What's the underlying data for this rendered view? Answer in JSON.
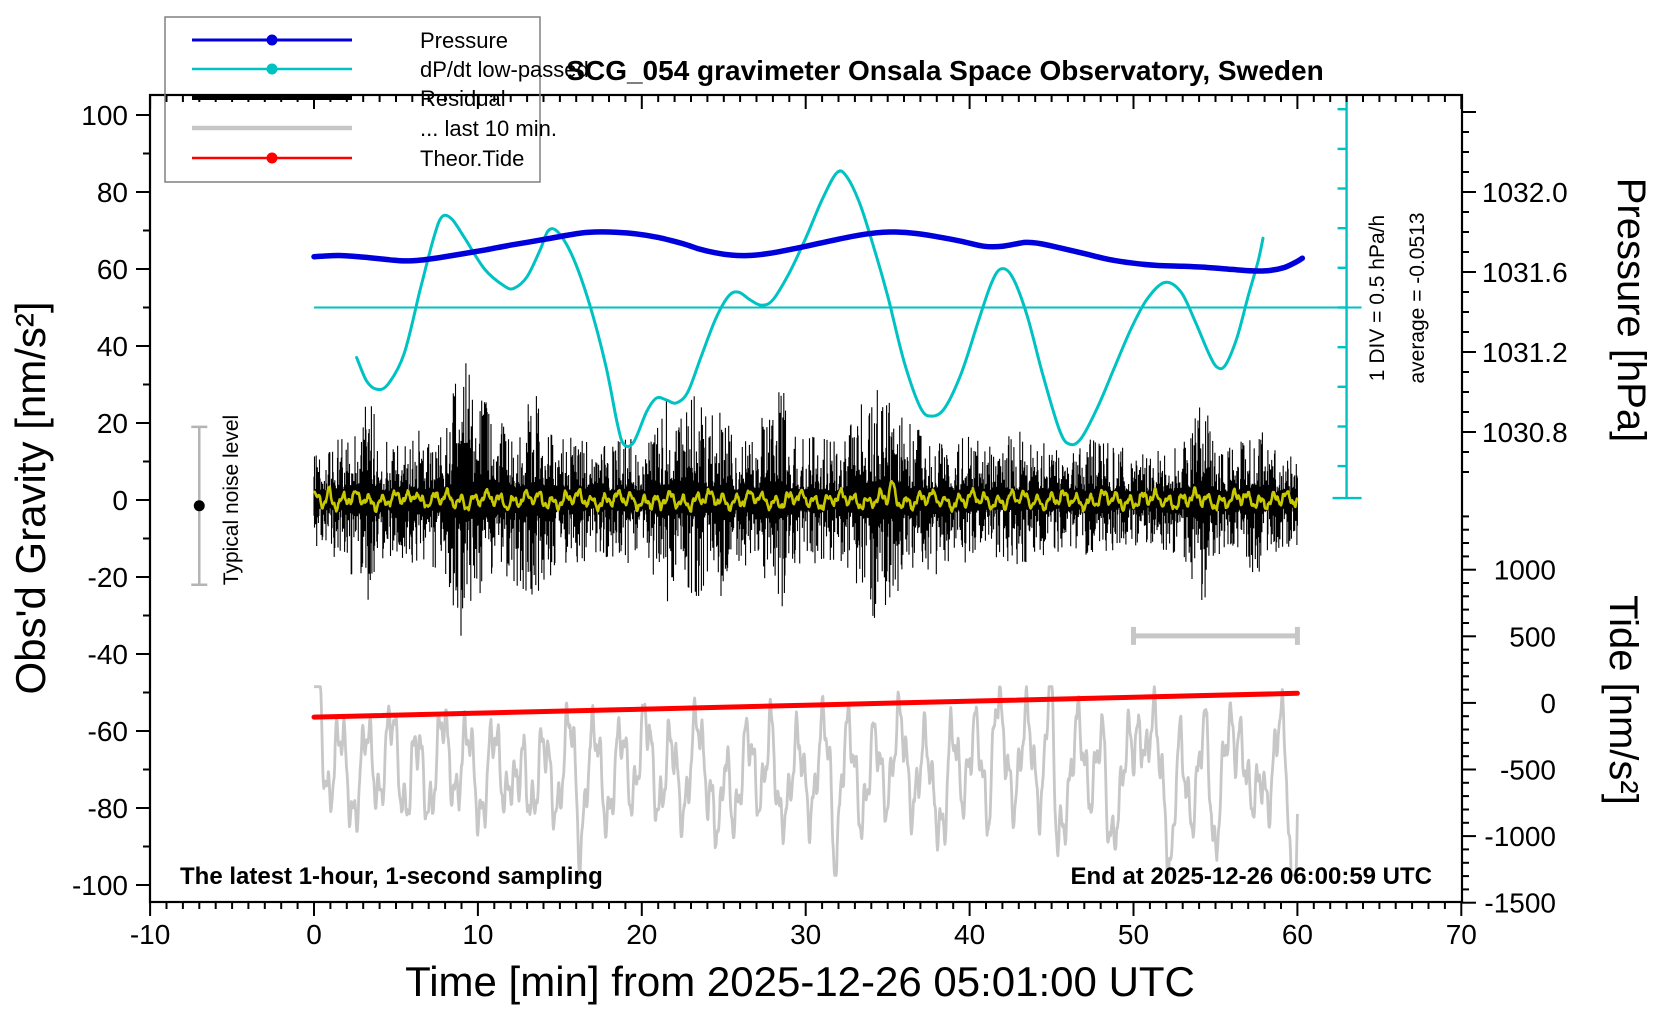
{
  "title": "SCG_054 gravimeter Onsala Space Observatory, Sweden",
  "xlabel": "Time [min] from 2025-12-26 05:01:00 UTC",
  "ylabel_left": "Obs'd Gravity [nm/s²]",
  "ylabel_pressure": "Pressure [hPa]",
  "ylabel_tide": "Tide [nm/s²]",
  "annotation_left": "The latest 1-hour, 1-second sampling",
  "annotation_right": "End at 2025-12-26 06:00:59 UTC",
  "noise_bar_label": "Typical noise level",
  "div_label": "1 DIV = 0.5 hPa/h",
  "avg_label": "average = -0.0513",
  "colors": {
    "pressure": "#0000dd",
    "dpdt": "#00c2c2",
    "residual": "#000000",
    "last10": "#c7c7c7",
    "tide": "#ff0000",
    "residual_smooth": "#c8c800",
    "noise_bar": "#b4b4b4",
    "scale_bar": "#c7c7c7",
    "frame": "#000000",
    "legend_border": "#808080"
  },
  "legend": {
    "items": [
      {
        "label": "Pressure",
        "color": "#0000dd",
        "lw": 3,
        "dot": true
      },
      {
        "label": "dP/dt low-passed",
        "color": "#00c2c2",
        "lw": 2.5,
        "dot": true
      },
      {
        "label": "Residual",
        "color": "#000000",
        "lw": 4,
        "dot": false
      },
      {
        "label": "... last 10 min.",
        "color": "#c7c7c7",
        "lw": 4.5,
        "dot": false
      },
      {
        "label": "Theor.Tide",
        "color": "#ff0000",
        "lw": 2.5,
        "dot": true
      }
    ]
  },
  "axes": {
    "x": {
      "min": -10,
      "max": 70,
      "major_step": 10,
      "minor_step": 1,
      "tick_labels": [
        "-10",
        "0",
        "10",
        "20",
        "30",
        "40",
        "50",
        "60",
        "70"
      ]
    },
    "gravity": {
      "min": -100,
      "max": 100,
      "major_step": 20,
      "minor_step": 10,
      "tick_labels": [
        "100",
        "80",
        "60",
        "40",
        "20",
        "0",
        "-20",
        "-40",
        "-60",
        "-80",
        "-100"
      ]
    },
    "pressure": {
      "tick_labels": [
        "1032.0",
        "1031.6",
        "1031.2",
        "1030.8"
      ],
      "minor_step_hpa": 0.1,
      "gravity_of_1032": 80,
      "gravity_per_0p4_hpa": 20.78
    },
    "tide": {
      "tick_labels": [
        "1000",
        "500",
        "0",
        "-500",
        "-1000",
        "-1500"
      ],
      "minor_step": 100,
      "gravity_of_tide_zero": -52.7,
      "tide_per_gravity_unit": 28.9
    }
  },
  "chart_data": {
    "type": "line",
    "x_unit": "minutes from 2025-12-26 05:01:00 UTC",
    "y_frame_note": "series y values are in left-axis gravity units [nm/s2] as plotted",
    "series": [
      {
        "name": "Pressure",
        "axis": "pressure_hPa",
        "approx_hpa_range": [
          1031.6,
          1031.8
        ],
        "points": [
          [
            0,
            63.2
          ],
          [
            1.5,
            63.5
          ],
          [
            3,
            63.1
          ],
          [
            4.6,
            62.4
          ],
          [
            5.5,
            62.1
          ],
          [
            6.5,
            62.3
          ],
          [
            7.7,
            63.0
          ],
          [
            9,
            63.9
          ],
          [
            10.5,
            65.0
          ],
          [
            12,
            66.2
          ],
          [
            13.8,
            67.5
          ],
          [
            15.5,
            68.8
          ],
          [
            16.7,
            69.5
          ],
          [
            18,
            69.6
          ],
          [
            19.5,
            69.2
          ],
          [
            21,
            68.2
          ],
          [
            22.5,
            66.6
          ],
          [
            23.5,
            65.2
          ],
          [
            24.5,
            64.2
          ],
          [
            25.5,
            63.6
          ],
          [
            26.5,
            63.5
          ],
          [
            27.5,
            63.9
          ],
          [
            28.5,
            64.6
          ],
          [
            30,
            65.9
          ],
          [
            31.5,
            67.3
          ],
          [
            33,
            68.6
          ],
          [
            34.3,
            69.4
          ],
          [
            35.5,
            69.6
          ],
          [
            36.8,
            69.2
          ],
          [
            38,
            68.4
          ],
          [
            39.5,
            67.2
          ],
          [
            40.9,
            65.9
          ],
          [
            42,
            65.9
          ],
          [
            43.4,
            66.9
          ],
          [
            44.3,
            66.6
          ],
          [
            45.5,
            65.5
          ],
          [
            47,
            64.0
          ],
          [
            48.5,
            62.5
          ],
          [
            50,
            61.5
          ],
          [
            51.5,
            60.9
          ],
          [
            53,
            60.7
          ],
          [
            54.5,
            60.4
          ],
          [
            56,
            59.9
          ],
          [
            57.3,
            59.5
          ],
          [
            58.3,
            59.6
          ],
          [
            59.2,
            60.4
          ],
          [
            60,
            62.0
          ],
          [
            60.3,
            62.8
          ]
        ]
      },
      {
        "name": "dP/dt low-passed",
        "axis": "hPa_per_h_ruler",
        "average_hpa_per_h": -0.0513,
        "div_hpa_per_h": 0.5,
        "points": [
          [
            2.6,
            37
          ],
          [
            3.2,
            31
          ],
          [
            3.8,
            28.8
          ],
          [
            4.5,
            30
          ],
          [
            5.5,
            38
          ],
          [
            6.5,
            55
          ],
          [
            7.3,
            68
          ],
          [
            7.8,
            73.5
          ],
          [
            8.4,
            73
          ],
          [
            9.2,
            68
          ],
          [
            10.4,
            60
          ],
          [
            11.6,
            55.6
          ],
          [
            12.2,
            55
          ],
          [
            13,
            58
          ],
          [
            13.8,
            65
          ],
          [
            14.3,
            70
          ],
          [
            14.9,
            69.5
          ],
          [
            15.8,
            63
          ],
          [
            16.8,
            51
          ],
          [
            17.8,
            35
          ],
          [
            18.5,
            20
          ],
          [
            18.9,
            14.5
          ],
          [
            19.5,
            15
          ],
          [
            20.3,
            23
          ],
          [
            20.9,
            26.5
          ],
          [
            21.5,
            26
          ],
          [
            22.1,
            25.2
          ],
          [
            22.8,
            28
          ],
          [
            23.6,
            37
          ],
          [
            24.5,
            47
          ],
          [
            25.3,
            53
          ],
          [
            25.9,
            54
          ],
          [
            26.6,
            52
          ],
          [
            27.3,
            50.6
          ],
          [
            28,
            52
          ],
          [
            29,
            59
          ],
          [
            30,
            68
          ],
          [
            31,
            78
          ],
          [
            31.9,
            85
          ],
          [
            32.5,
            84
          ],
          [
            33.3,
            77
          ],
          [
            34.2,
            65
          ],
          [
            35,
            53
          ],
          [
            36,
            36
          ],
          [
            37,
            24
          ],
          [
            37.7,
            21.8
          ],
          [
            38.5,
            24
          ],
          [
            39.5,
            33
          ],
          [
            40.5,
            46
          ],
          [
            41.3,
            56
          ],
          [
            41.9,
            60
          ],
          [
            42.6,
            58
          ],
          [
            43.5,
            48
          ],
          [
            44.5,
            32
          ],
          [
            45.5,
            18
          ],
          [
            46.1,
            14.5
          ],
          [
            46.8,
            16
          ],
          [
            47.8,
            24
          ],
          [
            48.8,
            34
          ],
          [
            49.8,
            44
          ],
          [
            50.8,
            52
          ],
          [
            51.9,
            56.5
          ],
          [
            52.9,
            54
          ],
          [
            53.8,
            46
          ],
          [
            54.6,
            38
          ],
          [
            55.1,
            34.5
          ],
          [
            55.6,
            35
          ],
          [
            56.3,
            42
          ],
          [
            57,
            53
          ],
          [
            57.6,
            62
          ],
          [
            57.9,
            68
          ]
        ],
        "average_line_gravity": 50
      },
      {
        "name": "Residual",
        "axis": "gravity",
        "kind": "noise_band",
        "center": 0,
        "seed": 42,
        "envelope": [
          [
            0,
            16
          ],
          [
            1,
            14
          ],
          [
            2,
            18
          ],
          [
            3,
            24
          ],
          [
            3.5,
            28
          ],
          [
            4,
            18
          ],
          [
            5,
            14
          ],
          [
            6,
            20
          ],
          [
            7,
            16
          ],
          [
            8,
            22
          ],
          [
            8.6,
            30
          ],
          [
            9,
            38
          ],
          [
            9.5,
            34
          ],
          [
            10,
            28
          ],
          [
            11,
            24
          ],
          [
            12,
            20
          ],
          [
            13,
            26
          ],
          [
            13.5,
            28
          ],
          [
            14,
            24
          ],
          [
            15,
            16
          ],
          [
            16,
            18
          ],
          [
            17,
            14
          ],
          [
            18,
            15
          ],
          [
            19,
            18
          ],
          [
            20,
            14
          ],
          [
            21,
            22
          ],
          [
            21.5,
            28
          ],
          [
            22,
            20
          ],
          [
            23,
            26
          ],
          [
            23.5,
            30
          ],
          [
            24,
            20
          ],
          [
            24.8,
            26
          ],
          [
            25.5,
            18
          ],
          [
            26,
            16
          ],
          [
            27,
            20
          ],
          [
            28,
            26
          ],
          [
            28.6,
            30
          ],
          [
            29,
            20
          ],
          [
            30,
            16
          ],
          [
            31,
            18
          ],
          [
            32,
            15
          ],
          [
            33,
            22
          ],
          [
            33.8,
            30
          ],
          [
            34.5,
            33
          ],
          [
            35,
            28
          ],
          [
            36,
            22
          ],
          [
            37,
            18
          ],
          [
            38,
            20
          ],
          [
            39,
            15
          ],
          [
            40,
            17
          ],
          [
            41,
            14
          ],
          [
            42,
            16
          ],
          [
            43,
            18
          ],
          [
            44,
            14
          ],
          [
            45,
            16
          ],
          [
            46,
            13
          ],
          [
            47,
            15
          ],
          [
            48,
            17
          ],
          [
            49,
            13
          ],
          [
            50,
            15
          ],
          [
            51,
            12
          ],
          [
            52,
            14
          ],
          [
            53,
            16
          ],
          [
            54,
            26
          ],
          [
            54.3,
            34
          ],
          [
            55,
            14
          ],
          [
            56,
            15
          ],
          [
            57,
            18
          ],
          [
            57.6,
            26
          ],
          [
            58,
            15
          ],
          [
            59,
            13
          ],
          [
            60,
            12
          ]
        ]
      },
      {
        "name": "Residual low-passed (yellow)",
        "axis": "gravity",
        "kind": "procedural_wiggle",
        "center": 0,
        "seed": 13,
        "sines": [
          [
            1.4,
            0.8,
            0.4
          ],
          [
            0.9,
            2.7,
            2.1
          ],
          [
            0.6,
            0.3,
            1.0
          ]
        ],
        "bumps": [
          [
            0.9,
            2.5
          ],
          [
            6.2,
            3.2
          ],
          [
            21.1,
            -2.6
          ],
          [
            35.25,
            3.4
          ]
        ]
      },
      {
        "name": "... last 10 min.",
        "axis": "tide",
        "kind": "procedural_wiggle",
        "center": -69.5,
        "seed": 7,
        "sines": [
          [
            10.5,
            1.55,
            1.2
          ],
          [
            5.2,
            0.52,
            4.0
          ],
          [
            3.3,
            3.9,
            0.8
          ],
          [
            2.2,
            0.23,
            2.0
          ]
        ],
        "spikes": [
          [
            0.2,
            -50
          ],
          [
            12.4,
            -87
          ],
          [
            16.2,
            -86
          ],
          [
            24.7,
            -95
          ],
          [
            28.3,
            -85
          ],
          [
            31.8,
            -88
          ],
          [
            38.5,
            -85
          ],
          [
            41.6,
            -51
          ],
          [
            44.9,
            -50
          ],
          [
            45.3,
            -89
          ],
          [
            48.5,
            -86
          ],
          [
            50.4,
            -51
          ],
          [
            52.3,
            -91
          ],
          [
            54.9,
            -88
          ],
          [
            56.6,
            -49
          ],
          [
            57.4,
            -86
          ],
          [
            59.7,
            -97
          ]
        ],
        "clip": [
          -97.5,
          -48.5
        ]
      },
      {
        "name": "Theor.Tide",
        "axis": "tide",
        "approx_tide_range_nms2": [
          -105,
          80
        ],
        "points": [
          [
            0,
            -56.4
          ],
          [
            30,
            -53.3
          ],
          [
            60,
            -50.2
          ]
        ]
      }
    ],
    "markers": {
      "noise_error_bar": {
        "x_min": -7,
        "center_gravity": -1.5,
        "half_span_gravity": 20.5
      },
      "scale_bar_10min": {
        "x_from": 50,
        "x_to": 60,
        "gravity": -35.3
      },
      "dpdt_ruler": {
        "x_min": 63,
        "top_gravity": 105,
        "bottom_gravity": 0.5,
        "div_gravity": 10.3
      },
      "average_line_gravity": 50
    }
  }
}
